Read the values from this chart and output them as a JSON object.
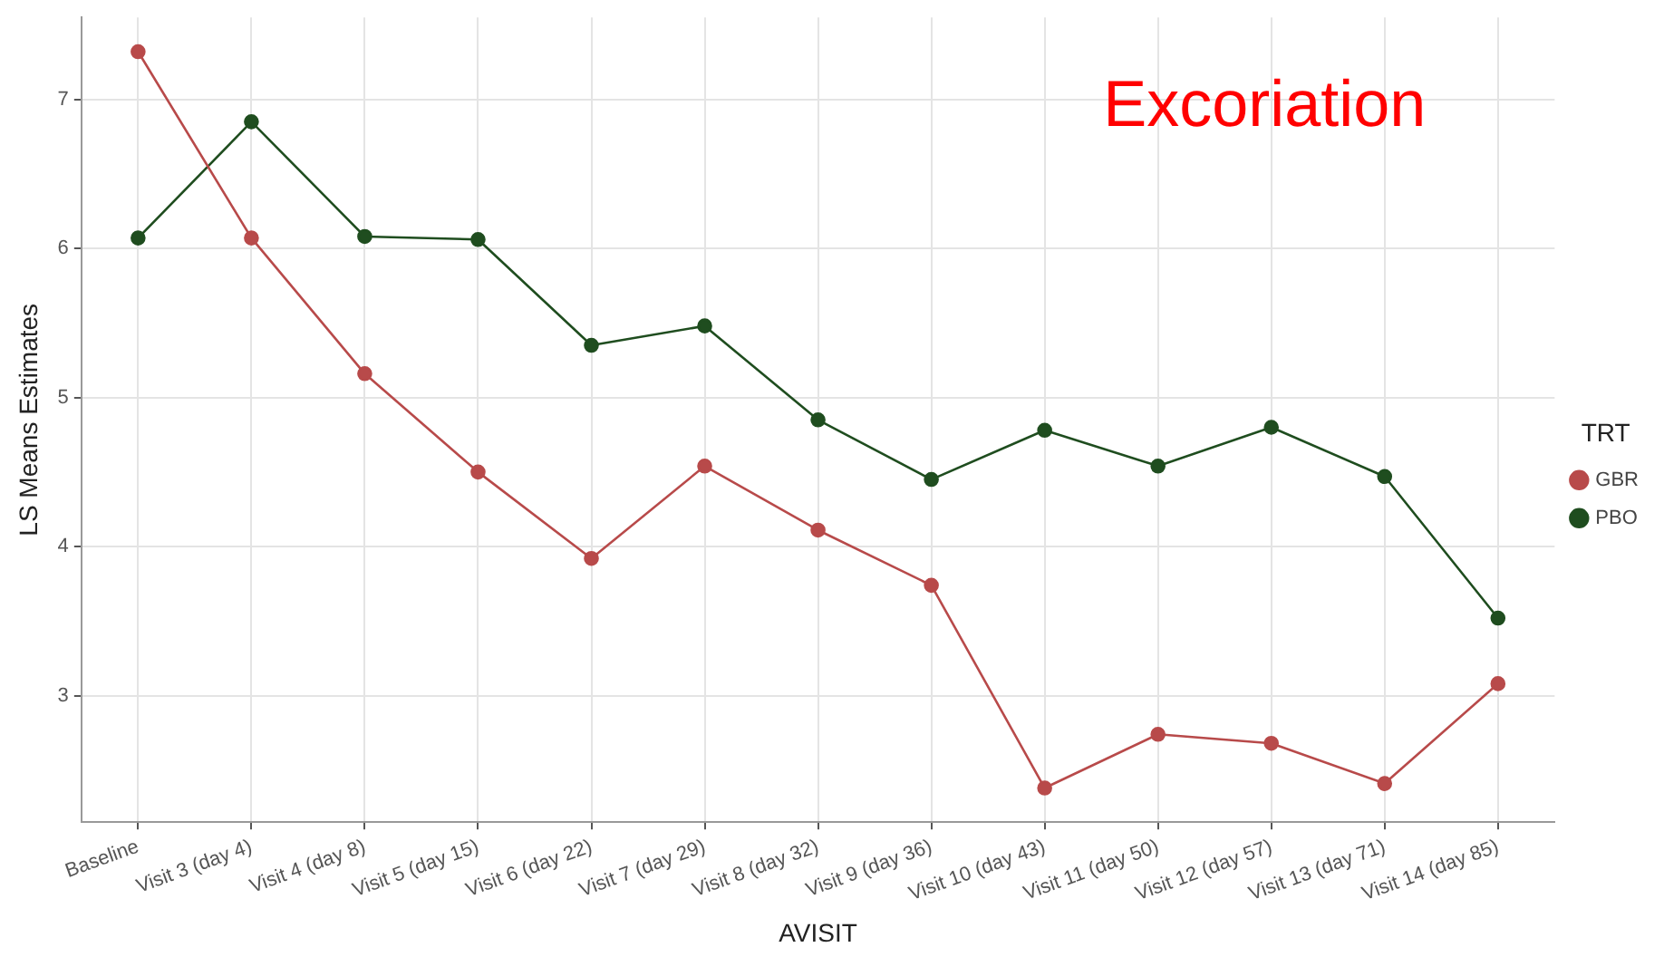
{
  "chart_data": {
    "type": "line",
    "xlabel": "AVISIT",
    "ylabel": "LS Means Estimates",
    "legend_title": "TRT",
    "legend": "right",
    "grid": true,
    "marker": "circle",
    "line_style": "solid",
    "annotations": [
      "Excoriation"
    ],
    "ylim": [
      2.15,
      7.55
    ],
    "yticks": [
      3,
      4,
      5,
      6,
      7
    ],
    "categories": [
      "Baseline",
      "Visit 3 (day 4)",
      "Visit 4 (day 8)",
      "Visit 5 (day 15)",
      "Visit 6 (day 22)",
      "Visit 7 (day 29)",
      "Visit 8 (day 32)",
      "Visit 9 (day 36)",
      "Visit 10 (day 43)",
      "Visit 11 (day 50)",
      "Visit 12 (day 57)",
      "Visit 13 (day 71)",
      "Visit 14 (day 85)"
    ],
    "series": [
      {
        "name": "GBR",
        "color": "#b84a4a",
        "values": [
          7.32,
          6.07,
          5.16,
          4.5,
          3.92,
          4.54,
          4.11,
          3.74,
          2.38,
          2.74,
          2.68,
          2.41,
          3.08
        ]
      },
      {
        "name": "PBO",
        "color": "#1f4d1f",
        "values": [
          6.07,
          6.85,
          6.08,
          6.06,
          5.35,
          5.48,
          4.85,
          4.45,
          4.78,
          4.54,
          4.8,
          4.47,
          3.52
        ]
      }
    ]
  }
}
